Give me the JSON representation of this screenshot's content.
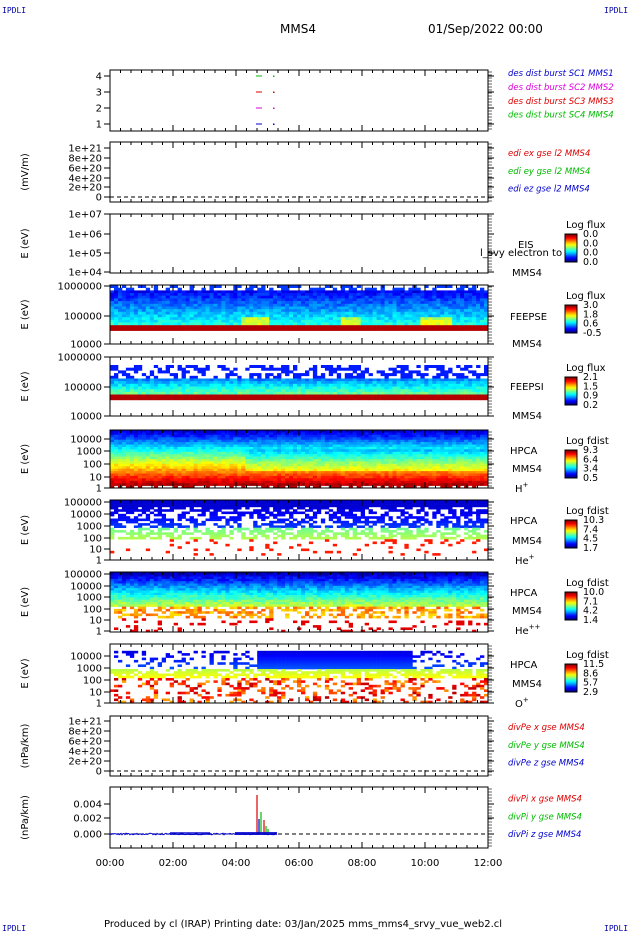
{
  "corner_label": "IPDLI",
  "header": {
    "title": "MMS4",
    "date": "01/Sep/2022 00:00"
  },
  "footer": "Produced by cl (IRAP)   Printing date: 03/Jan/2025   mms_mms4_srvy_vue_web2.cl",
  "colors": {
    "red": "#dd0000",
    "green": "#00bb00",
    "blue": "#0000cc",
    "magenta": "#dd00dd"
  },
  "chart_data": {
    "type": "heatmap",
    "x_ticks": [
      "00:00",
      "02:00",
      "04:00",
      "06:00",
      "08:00",
      "10:00",
      "12:00"
    ],
    "panels": [
      {
        "id": "orbit",
        "ylabel": "",
        "yticks": [
          "4",
          "3",
          "2",
          "1"
        ],
        "legend": [
          {
            "text": "des dist burst SC1 MMS1",
            "color": "#0000cc"
          },
          {
            "text": "des dist burst SC2 MMS2",
            "color": "#dd00dd"
          },
          {
            "text": "des dist burst SC3 MMS3",
            "color": "#dd0000"
          },
          {
            "text": "des dist burst SC4 MMS4",
            "color": "#00bb00"
          }
        ],
        "marks": [
          {
            "sc": 4,
            "color": "#00bb00"
          },
          {
            "sc": 3,
            "color": "#dd0000"
          },
          {
            "sc": 2,
            "color": "#dd00dd"
          },
          {
            "sc": 1,
            "color": "#0000cc"
          }
        ]
      },
      {
        "id": "edi",
        "ylabel": "(mV/m)",
        "yticks": [
          "1e+21",
          "8e+20",
          "6e+20",
          "4e+20",
          "2e+20",
          "0"
        ],
        "legend": [
          {
            "text": "edi ex gse l2 MMS4",
            "color": "#dd0000"
          },
          {
            "text": "edi ey gse l2 MMS4",
            "color": "#00bb00"
          },
          {
            "text": "edi ez gse l2 MMS4",
            "color": "#0000cc"
          }
        ]
      },
      {
        "id": "eis",
        "ylabel": "E (eV)",
        "yticks": [
          "1e+07",
          "1e+06",
          "1e+05",
          "1e+04"
        ],
        "label1": "EIS",
        "label2": "MMS4",
        "overlay": "l_svy electron to",
        "cbar_title": "Log flux",
        "cbar_ticks": [
          "0.0",
          "0.0",
          "0.0",
          "0.0"
        ]
      },
      {
        "id": "feepse",
        "ylabel": "E (eV)",
        "yticks": [
          "1000000",
          "100000",
          "10000"
        ],
        "label1": "FEEPSE",
        "label2": "MMS4",
        "cbar_title": "Log flux",
        "cbar_ticks": [
          "3.0",
          "1.8",
          "0.6",
          "-0.5"
        ]
      },
      {
        "id": "feepsi",
        "ylabel": "E (eV)",
        "yticks": [
          "1000000",
          "100000",
          "10000"
        ],
        "label1": "FEEPSI",
        "label2": "MMS4",
        "cbar_title": "Log flux",
        "cbar_ticks": [
          "2.1",
          "1.5",
          "0.9",
          "0.2"
        ]
      },
      {
        "id": "hpca_h",
        "ylabel": "E (eV)",
        "yticks": [
          "10000",
          "1000",
          "100",
          "10",
          "1"
        ],
        "label1": "HPCA",
        "label2": "MMS4",
        "species": "H",
        "charge": "+",
        "cbar_title": "Log fdist",
        "cbar_ticks": [
          "9.3",
          "6.4",
          "3.4",
          "0.5"
        ]
      },
      {
        "id": "hpca_he",
        "ylabel": "E (eV)",
        "yticks": [
          "100000",
          "10000",
          "1000",
          "100",
          "10",
          "1"
        ],
        "label1": "HPCA",
        "label2": "MMS4",
        "species": "He",
        "charge": "+",
        "cbar_title": "Log fdist",
        "cbar_ticks": [
          "10.3",
          "7.4",
          "4.5",
          "1.7"
        ]
      },
      {
        "id": "hpca_hepp",
        "ylabel": "E (eV)",
        "yticks": [
          "100000",
          "10000",
          "1000",
          "100",
          "10",
          "1"
        ],
        "label1": "HPCA",
        "label2": "MMS4",
        "species": "He",
        "charge": "++",
        "cbar_title": "Log fdist",
        "cbar_ticks": [
          "10.0",
          "7.1",
          "4.2",
          "1.4"
        ]
      },
      {
        "id": "hpca_o",
        "ylabel": "E (eV)",
        "yticks": [
          "10000",
          "1000",
          "100",
          "10",
          "1"
        ],
        "label1": "HPCA",
        "label2": "MMS4",
        "species": "O",
        "charge": "+",
        "cbar_title": "Log fdist",
        "cbar_ticks": [
          "11.5",
          "8.6",
          "5.7",
          "2.9"
        ]
      },
      {
        "id": "divpe",
        "ylabel": "(nPa/km)",
        "yticks": [
          "1e+21",
          "8e+20",
          "6e+20",
          "4e+20",
          "2e+20",
          "0"
        ],
        "legend": [
          {
            "text": "divPe x gse MMS4",
            "color": "#dd0000"
          },
          {
            "text": "divPe y gse MMS4",
            "color": "#00bb00"
          },
          {
            "text": "divPe z gse MMS4",
            "color": "#0000cc"
          }
        ]
      },
      {
        "id": "divpi",
        "ylabel": "(nPa/km)",
        "yticks": [
          "0.004",
          "0.002",
          "0.000"
        ],
        "legend": [
          {
            "text": "divPi x gse MMS4",
            "color": "#dd0000"
          },
          {
            "text": "divPi y gse MMS4",
            "color": "#00bb00"
          },
          {
            "text": "divPi z gse MMS4",
            "color": "#0000cc"
          }
        ]
      }
    ]
  }
}
